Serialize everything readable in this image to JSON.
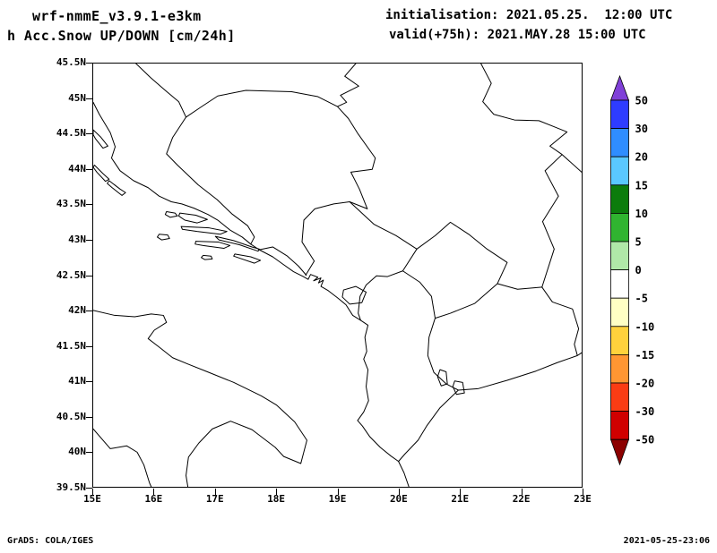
{
  "header": {
    "model": "wrf-nmmE_v3.9.1-e3km",
    "variable": "h Acc.Snow UP/DOWN [cm/24h]",
    "init": "initialisation: 2021.05.25.  12:00 UTC",
    "valid": "valid(+75h): 2021.MAY.28 15:00 UTC"
  },
  "footer": {
    "left": "GrADS: COLA/IGES",
    "right": "2021-05-25-23:06"
  },
  "chart_data": {
    "type": "heatmap",
    "title": "h Acc.Snow UP/DOWN [cm/24h]",
    "model": "wrf-nmmE_v3.9.1-e3km",
    "initialisation": "2021.05.25. 12:00 UTC",
    "valid": "+75h: 2021.MAY.28 15:00 UTC",
    "region": "Adriatic Sea / western Balkans map domain",
    "map_layers": [
      "coastlines",
      "country borders",
      "islands",
      "lakes"
    ],
    "grid": false,
    "legend_position": "right vertical colorbar",
    "x_axis": {
      "label": "longitude",
      "range_deg_east": [
        15,
        23
      ],
      "ticks": [
        "15E",
        "16E",
        "17E",
        "18E",
        "19E",
        "20E",
        "21E",
        "22E",
        "23E"
      ]
    },
    "y_axis": {
      "label": "latitude",
      "range_deg_north": [
        39.5,
        45.5
      ],
      "ticks": [
        "45.5N",
        "45N",
        "44.5N",
        "44N",
        "43.5N",
        "43N",
        "42.5N",
        "42N",
        "41.5N",
        "41N",
        "40.5N",
        "40N",
        "39.5N"
      ]
    },
    "colorbar": {
      "units": "cm/24h",
      "levels": [
        "50",
        "30",
        "20",
        "15",
        "10",
        "5",
        "0",
        "-5",
        "-10",
        "-15",
        "-20",
        "-30",
        "-50"
      ],
      "colors_top_to_bottom": [
        "#8040d8",
        "#2e3cff",
        "#2f8dff",
        "#5ac8ff",
        "#0c7c0c",
        "#30b430",
        "#b0e8a8",
        "#ffffff",
        "#ffffc4",
        "#ffd23c",
        "#ff9632",
        "#fa3c14",
        "#d00000",
        "#8c0000"
      ]
    },
    "field": "No non-zero accumulated-snow shading visible anywhere in the domain; entire map lies in the white (-5 to 5) band, i.e. ~0 cm/24h"
  }
}
